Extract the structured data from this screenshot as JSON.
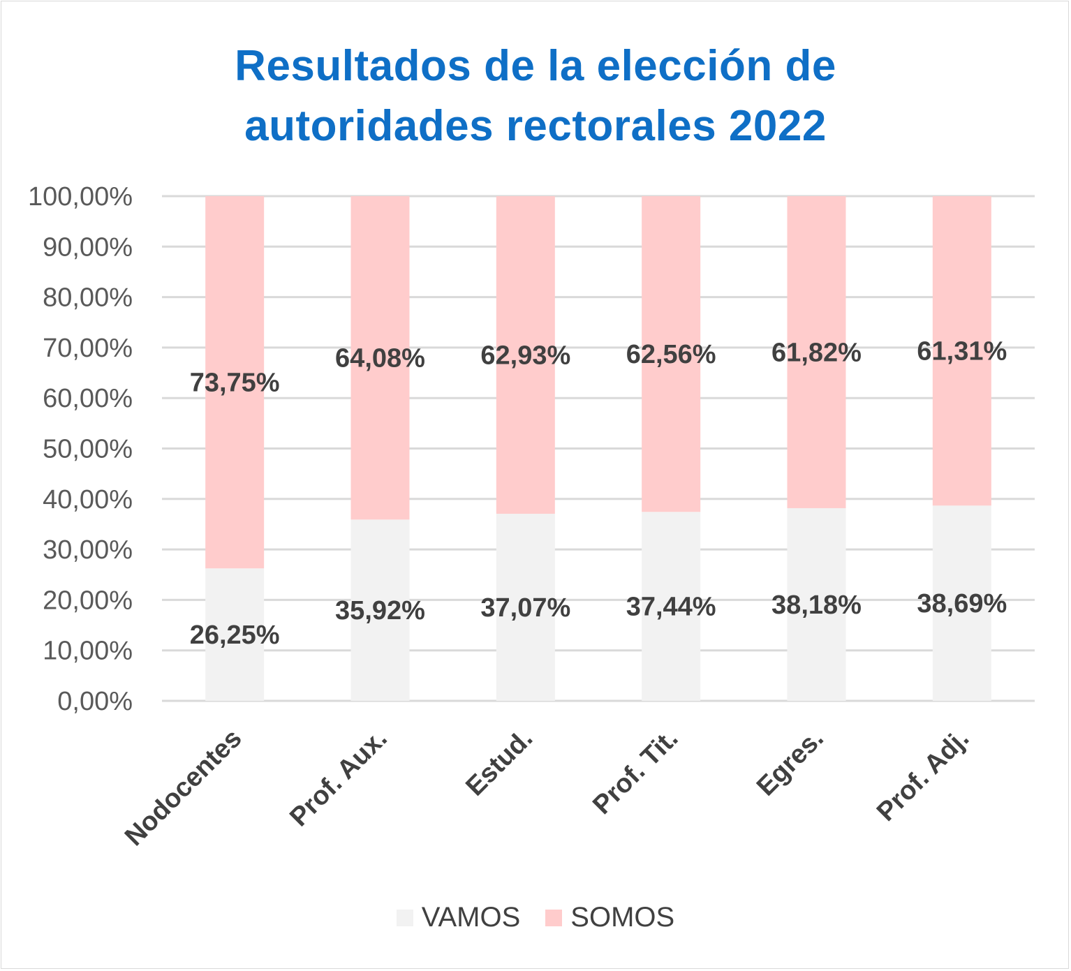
{
  "chart_data": {
    "type": "bar",
    "stacked": true,
    "title": [
      "Resultados de la elección de",
      "autoridades rectorales 2022"
    ],
    "categories": [
      "Nodocentes",
      "Prof. Aux.",
      "Estud.",
      "Prof. Tit.",
      "Egres.",
      "Prof. Adj."
    ],
    "series": [
      {
        "name": "VAMOS",
        "color": "#f2f2f2",
        "values": [
          26.25,
          35.92,
          37.07,
          37.44,
          38.18,
          38.69
        ],
        "labels": [
          "26,25%",
          "35,92%",
          "37,07%",
          "37,44%",
          "38,18%",
          "38,69%"
        ]
      },
      {
        "name": "SOMOS",
        "color": "#ffcccc",
        "values": [
          73.75,
          64.08,
          62.93,
          62.56,
          61.82,
          61.31
        ],
        "labels": [
          "73,75%",
          "64,08%",
          "62,93%",
          "62,56%",
          "61,82%",
          "61,31%"
        ]
      }
    ],
    "ylim": [
      0,
      100
    ],
    "yticks": [
      0,
      10,
      20,
      30,
      40,
      50,
      60,
      70,
      80,
      90,
      100
    ],
    "ytick_labels": [
      "0,00%",
      "10,00%",
      "20,00%",
      "30,00%",
      "40,00%",
      "50,00%",
      "60,00%",
      "70,00%",
      "80,00%",
      "90,00%",
      "100,00%"
    ],
    "grid": true,
    "legend": "bottom",
    "xlabel": "",
    "ylabel": ""
  }
}
